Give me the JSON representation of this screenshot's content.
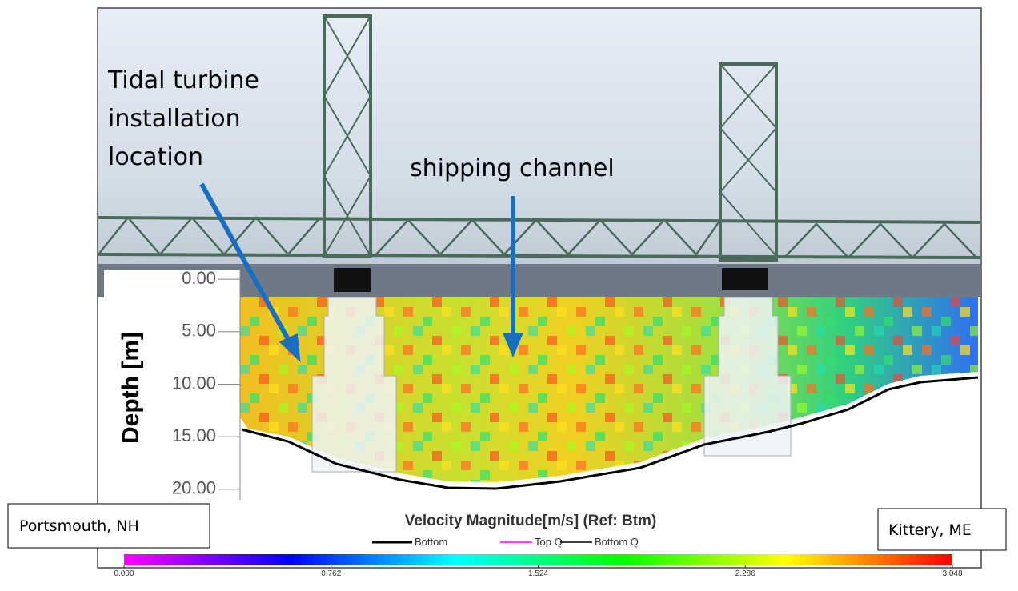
{
  "annotations": {
    "turbine": [
      "Tidal turbine",
      "installation",
      "location"
    ],
    "channel": "shipping channel"
  },
  "locations": {
    "left": "Portsmouth, NH",
    "right": "Kittery, ME"
  },
  "chart_data": {
    "type": "heatmap",
    "title": "Velocity Magnitude[m/s] (Ref: Btm)",
    "y_label": "Depth [m]",
    "ylim": [
      -1,
      21
    ],
    "inverted": true,
    "yticks": [
      {
        "value": 0,
        "label": "0.00"
      },
      {
        "value": 5,
        "label": "5.00"
      },
      {
        "value": 10,
        "label": "10.00"
      },
      {
        "value": 15,
        "label": "15.00"
      },
      {
        "value": 20,
        "label": "20.00"
      }
    ],
    "legend": [
      {
        "name": "Bottom",
        "color": "#000000"
      },
      {
        "name": "Top Q",
        "color": "#ff00ff"
      },
      {
        "name": "Bottom Q",
        "color": "#000000"
      }
    ],
    "colorbar": {
      "lim": [
        0,
        3.048
      ],
      "colors": [
        "#ff00ff",
        "#0000ff",
        "#00ffff",
        "#00ff00",
        "#ffff00",
        "#ff0000"
      ],
      "ticks": [
        {
          "value": 0,
          "label": "0.000"
        },
        {
          "value": 0.762,
          "label": "0.762"
        },
        {
          "value": 1.524,
          "label": "1.524"
        },
        {
          "value": 2.286,
          "label": "2.286"
        },
        {
          "value": 3.048,
          "label": "3.048"
        }
      ]
    }
  }
}
